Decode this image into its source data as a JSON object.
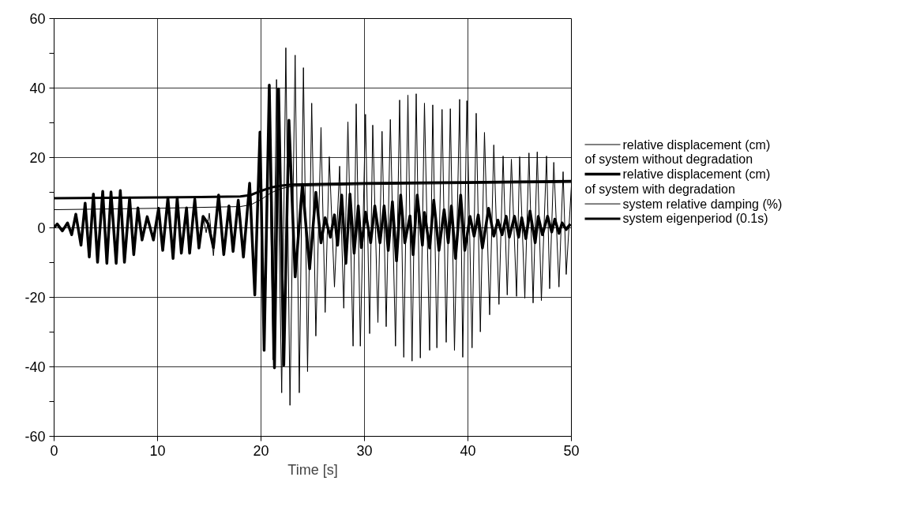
{
  "chart_data": {
    "type": "line",
    "xlabel": "Time [s]",
    "xlim": [
      0,
      50
    ],
    "ylim": [
      -60,
      60
    ],
    "xticks": [
      0,
      10,
      20,
      30,
      40,
      50
    ],
    "yticks": [
      -60,
      {
        "value": -50,
        "label": null
      },
      -40,
      {
        "value": -30,
        "label": null
      },
      -20,
      {
        "value": -10,
        "label": null
      },
      0,
      {
        "value": 10,
        "label": null
      },
      20,
      {
        "value": 30,
        "label": null
      },
      40,
      {
        "value": 50,
        "label": null
      },
      60
    ],
    "grid": true,
    "legend": "right",
    "line_style": "solid",
    "series": [
      {
        "name": "relative displacement (cm)\nof system without degradation",
        "color": "#000000",
        "x": [
          0,
          0.3,
          0.8,
          1.3,
          1.7,
          2.1,
          2.6,
          3.0,
          3.4,
          3.8,
          4.2,
          4.7,
          5.1,
          5.5,
          6.0,
          6.4,
          6.8,
          7.3,
          7.7,
          8.1,
          8.5,
          9.0,
          9.6,
          10.1,
          10.5,
          11.0,
          11.5,
          11.9,
          12.3,
          12.8,
          13.1,
          13.6,
          14.0,
          14.4,
          14.7,
          15.0,
          15.4,
          15.9,
          16.4,
          16.9,
          17.3,
          17.8,
          18.3,
          18.9,
          19.4,
          19.9,
          20.35,
          20.75,
          21.15,
          21.5,
          22.0,
          22.4,
          22.8,
          23.3,
          23.7,
          24.1,
          24.5,
          24.9,
          25.3,
          25.8,
          26.2,
          26.6,
          27.1,
          27.6,
          28.0,
          28.4,
          28.9,
          29.2,
          29.6,
          30.1,
          30.5,
          30.8,
          31.3,
          31.7,
          32.1,
          32.5,
          33.0,
          33.4,
          33.8,
          34.2,
          34.6,
          35.0,
          35.4,
          35.8,
          36.3,
          36.6,
          37.0,
          37.5,
          37.9,
          38.3,
          38.7,
          39.2,
          39.5,
          39.9,
          40.4,
          40.8,
          41.2,
          41.6,
          42.1,
          42.5,
          43.0,
          43.4,
          43.8,
          44.2,
          44.7,
          45.0,
          45.5,
          45.9,
          46.3,
          46.7,
          47.1,
          47.6,
          47.9,
          48.3,
          48.8,
          49.2,
          49.5,
          50.0
        ],
        "values": [
          0,
          1.0,
          -1,
          1.3,
          -2.1,
          3.8,
          -5.1,
          7,
          -8.5,
          9.6,
          -10,
          10.4,
          -10.3,
          10.2,
          -10.3,
          10.6,
          -10,
          8.5,
          -7.8,
          5.6,
          -3.6,
          3.1,
          -3.6,
          5.5,
          -6.6,
          8.5,
          -8.9,
          8.5,
          -7.4,
          5.6,
          -7.4,
          8.1,
          -5.9,
          3.2,
          -1.5,
          4.1,
          -8.1,
          9.3,
          -7.8,
          6.2,
          -6.9,
          7.8,
          -8.5,
          12.7,
          -19.4,
          26,
          -33,
          38,
          -38,
          42.5,
          -47.5,
          51.6,
          -51.1,
          49.5,
          -47.5,
          45.9,
          -41.4,
          35.7,
          -31.2,
          28.7,
          -24.4,
          20.3,
          -17.1,
          17.6,
          -23.2,
          30.3,
          -34.1,
          35.5,
          -34.1,
          32.5,
          -30.5,
          29.4,
          -27.3,
          27.6,
          -28.5,
          31,
          -34.1,
          36.6,
          -37.3,
          38,
          -38.4,
          38.4,
          -37.5,
          35.7,
          -35.3,
          35.2,
          -34.6,
          33.9,
          -33,
          34.1,
          -35.3,
          36.8,
          -37.3,
          36.4,
          -34.6,
          32.8,
          -30,
          27.3,
          -25.1,
          23.7,
          -22.1,
          20.5,
          -19.4,
          19.6,
          -19.8,
          20.3,
          -20.3,
          21.4,
          -21.7,
          21.7,
          -21,
          20.5,
          -17.6,
          18.7,
          -17.1,
          16,
          -13.5,
          11.9
        ]
      },
      {
        "name": "relative displacement (cm)\nof system with degradation",
        "color": "#000000",
        "x": [
          0,
          0.3,
          0.8,
          1.3,
          1.7,
          2.1,
          2.6,
          3.0,
          3.4,
          3.8,
          4.2,
          4.7,
          5.1,
          5.5,
          6.0,
          6.4,
          6.8,
          7.3,
          7.7,
          8.1,
          8.5,
          9.0,
          9.6,
          10.1,
          10.5,
          11.0,
          11.5,
          11.9,
          12.3,
          12.8,
          13.1,
          13.6,
          14.0,
          14.4,
          14.9,
          15.4,
          15.9,
          16.4,
          16.9,
          17.3,
          17.8,
          18.3,
          18.9,
          19.4,
          19.9,
          20.3,
          20.8,
          21.3,
          21.7,
          22.2,
          22.7,
          23.3,
          24.0,
          24.7,
          25.3,
          25.8,
          26.2,
          26.7,
          27.1,
          27.4,
          27.8,
          28.2,
          28.6,
          29.0,
          29.4,
          29.7,
          30.1,
          30.6,
          31.0,
          31.5,
          31.9,
          32.3,
          32.7,
          33.1,
          33.5,
          33.9,
          34.4,
          34.7,
          35.1,
          35.6,
          35.8,
          36.3,
          36.7,
          37.2,
          37.7,
          38.1,
          38.4,
          38.8,
          39.3,
          39.7,
          40.2,
          40.6,
          41.0,
          41.4,
          42.0,
          42.5,
          42.9,
          43.3,
          43.7,
          44.0,
          44.5,
          44.9,
          45.2,
          45.6,
          46.0,
          46.5,
          46.8,
          47.2,
          47.7,
          48.1,
          48.4,
          48.8,
          49.1,
          49.5,
          49.9
        ],
        "values": [
          0,
          1.0,
          -1,
          1.3,
          -2.1,
          3.8,
          -5.1,
          7,
          -8.5,
          9.6,
          -10,
          10.4,
          -10.3,
          10.2,
          -10.3,
          10.6,
          -10,
          8.5,
          -7.8,
          5.6,
          -3.6,
          3.1,
          -3.6,
          5.5,
          -6.6,
          8.5,
          -8.9,
          8.5,
          -7.4,
          5.6,
          -7.4,
          8.1,
          -5.9,
          3.2,
          1,
          -5.8,
          9.3,
          -7.8,
          6.2,
          -6.9,
          7.8,
          -8.5,
          12.7,
          -19.4,
          27.4,
          -35.3,
          40.9,
          -40.3,
          39.8,
          -39.6,
          30.8,
          -14.2,
          12.4,
          -11.9,
          10.1,
          -4.4,
          2.8,
          -2.8,
          3.6,
          -5.1,
          9.3,
          -10.3,
          9.6,
          -7.4,
          6.2,
          -5.8,
          4.4,
          -4.4,
          6.2,
          -4.4,
          6.2,
          -6.6,
          7.4,
          -9.6,
          9.3,
          -4.4,
          3.3,
          -7.8,
          9.3,
          -5.1,
          4.3,
          -5.9,
          7.8,
          -6.6,
          5.1,
          -4.4,
          6.2,
          -8.9,
          9.3,
          -6.6,
          3.2,
          -2.5,
          3.6,
          -5.9,
          5.5,
          -2.5,
          2.1,
          -2.1,
          3.2,
          -2.8,
          3.2,
          -2.8,
          2.8,
          -3.2,
          4.7,
          -4.4,
          3.2,
          -2.1,
          3.2,
          -1.3,
          2.4,
          -1.7,
          1.3,
          -0.6,
          1
        ]
      },
      {
        "name": "system relative damping (%)",
        "color": "#000000",
        "x": [
          0,
          10,
          18,
          19,
          20,
          21,
          22,
          23,
          30,
          40,
          50
        ],
        "values": [
          5.1,
          5.5,
          6.0,
          6.5,
          8,
          10,
          11.2,
          11.8,
          12.3,
          12.6,
          12.9
        ]
      },
      {
        "name": "system eigenperiod (0.1s)",
        "color": "#000000",
        "x": [
          0,
          10,
          18,
          19,
          20,
          21,
          22,
          23,
          30,
          40,
          50
        ],
        "values": [
          8.4,
          8.6,
          8.9,
          9.3,
          10.5,
          11.5,
          12,
          12.3,
          12.7,
          13,
          13.3
        ]
      }
    ]
  }
}
